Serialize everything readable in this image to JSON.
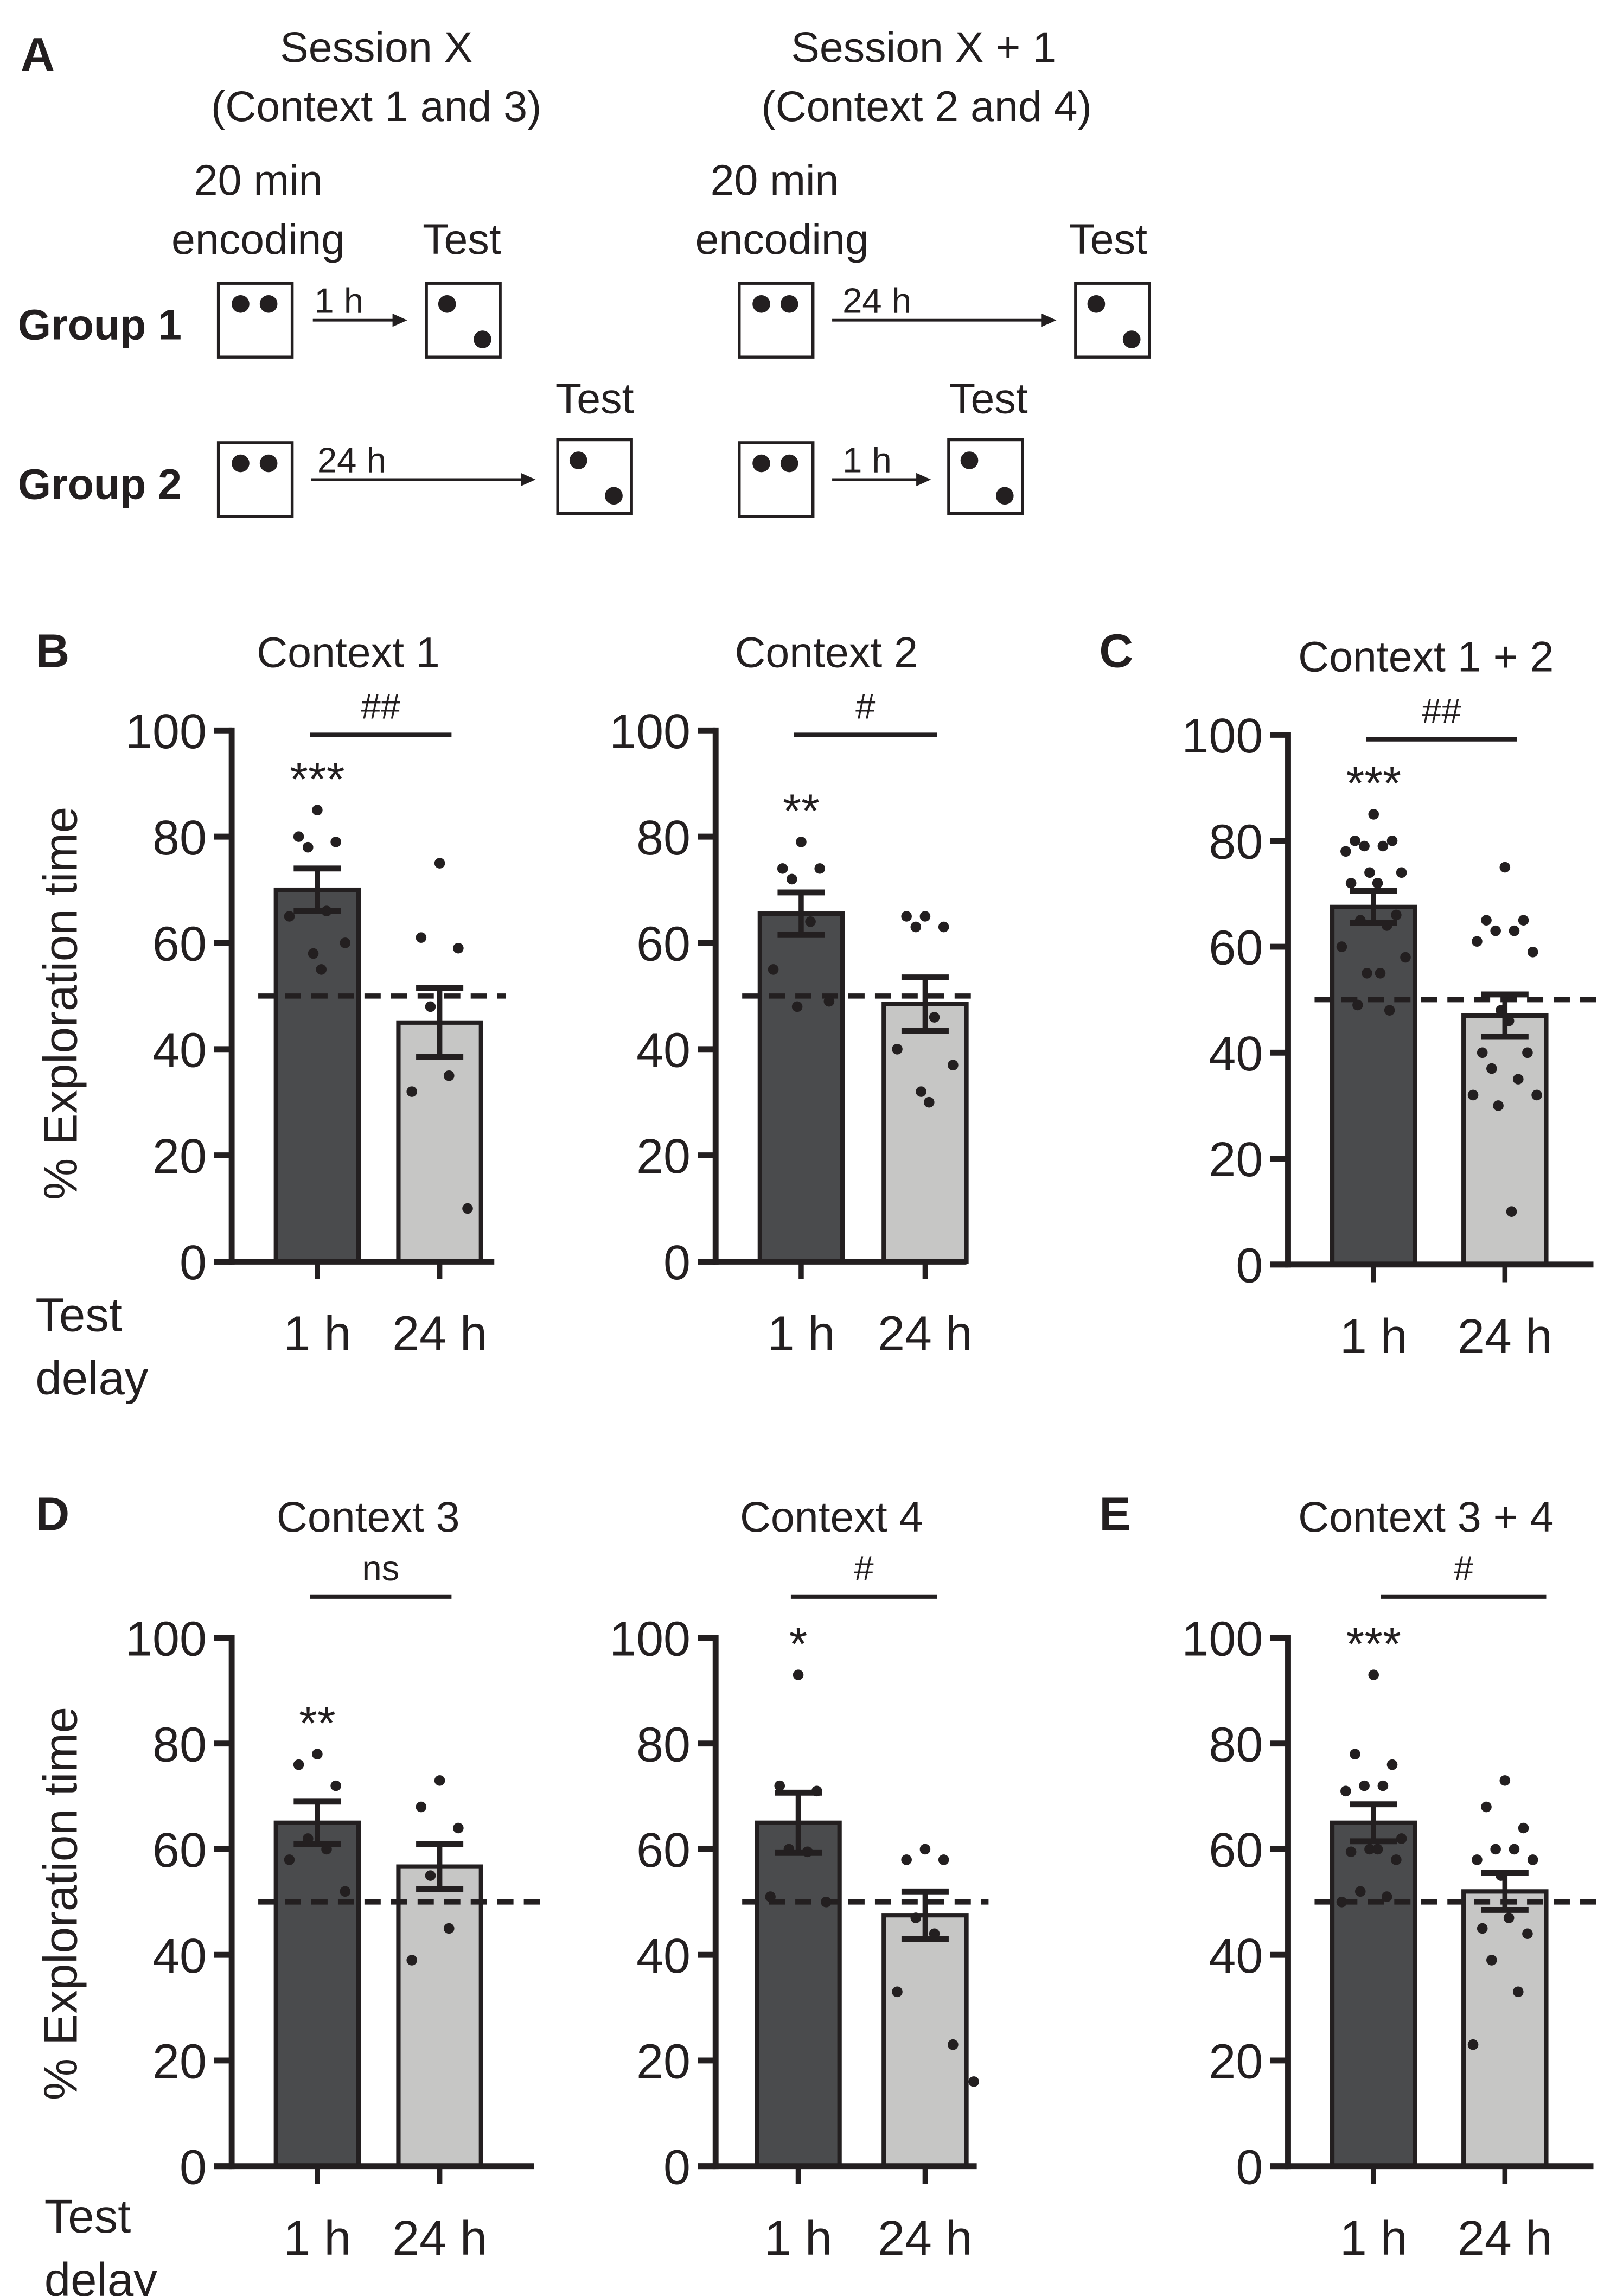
{
  "panel_a": {
    "label": "A",
    "session_x": {
      "title": "Session X",
      "subtitle": "(Context 1 and 3)"
    },
    "session_x1": {
      "title": "Session X + 1",
      "subtitle": "(Context 2 and 4)"
    },
    "encoding_line1": "20 min",
    "encoding_line2": "encoding",
    "test": "Test",
    "group1": "Group 1",
    "group2": "Group 2",
    "delay_1h": "1 h",
    "delay_24h": "24 h"
  },
  "panel_labels": {
    "b": "B",
    "c": "C",
    "d": "D",
    "e": "E"
  },
  "axis": {
    "ylabel": "% Exploration time",
    "xlabel_line1": "Test",
    "xlabel_line2": "delay"
  },
  "chart_data": [
    {
      "type": "bar",
      "title": "Context 1",
      "categories": [
        "1 h",
        "24 h"
      ],
      "values": [
        70,
        45
      ],
      "sem": [
        4,
        6.5
      ],
      "points": [
        [
          85,
          80,
          79,
          78,
          66,
          65,
          60,
          58,
          55
        ],
        [
          75,
          61,
          59,
          48,
          35,
          32,
          10
        ]
      ],
      "stars": [
        "***",
        ""
      ],
      "comparison": "##",
      "ylim": [
        0,
        100
      ],
      "yticks": [
        0,
        20,
        40,
        60,
        80,
        100
      ],
      "chance": 50
    },
    {
      "type": "bar",
      "title": "Context 2",
      "categories": [
        "1 h",
        "24 h"
      ],
      "values": [
        65.5,
        48.5
      ],
      "sem": [
        4,
        5
      ],
      "points": [
        [
          79,
          74,
          74,
          72,
          64,
          55,
          49,
          48
        ],
        [
          65,
          65,
          63,
          63,
          46,
          40,
          37,
          32,
          30
        ]
      ],
      "stars": [
        "**",
        ""
      ],
      "comparison": "#",
      "ylim": [
        0,
        100
      ],
      "yticks": [
        0,
        20,
        40,
        60,
        80,
        100
      ],
      "chance": 50
    },
    {
      "type": "bar",
      "title": "Context 1 + 2",
      "categories": [
        "1 h",
        "24 h"
      ],
      "values": [
        67.5,
        47
      ],
      "sem": [
        3,
        4
      ],
      "points": [
        [
          85,
          80,
          80,
          79,
          79,
          78,
          74,
          74,
          72,
          72,
          66,
          65,
          64,
          60,
          58,
          55,
          55,
          49,
          48
        ],
        [
          75,
          65,
          65,
          63,
          63,
          61,
          59,
          48,
          46,
          40,
          40,
          37,
          35,
          32,
          32,
          30,
          10
        ]
      ],
      "stars": [
        "***",
        ""
      ],
      "comparison": "##",
      "ylim": [
        0,
        100
      ],
      "yticks": [
        0,
        20,
        40,
        60,
        80,
        100
      ],
      "chance": 50
    },
    {
      "type": "bar",
      "title": "Context 3",
      "categories": [
        "1 h",
        "24 h"
      ],
      "values": [
        65,
        56.7
      ],
      "sem": [
        4,
        4.3
      ],
      "points": [
        [
          78,
          76,
          72,
          62,
          60,
          58,
          52
        ],
        [
          73,
          68,
          64,
          55,
          45,
          39
        ]
      ],
      "stars": [
        "**",
        ""
      ],
      "comparison": "ns",
      "ylim": [
        0,
        100
      ],
      "yticks": [
        0,
        20,
        40,
        60,
        80,
        100
      ],
      "chance": 50
    },
    {
      "type": "bar",
      "title": "Context 4",
      "categories": [
        "1 h",
        "24 h"
      ],
      "values": [
        65,
        47.5
      ],
      "sem": [
        5.7,
        4.5
      ],
      "points": [
        [
          93,
          72,
          71,
          60,
          59.5,
          51,
          50
        ],
        [
          60,
          58,
          58,
          47,
          44,
          33,
          23,
          16
        ]
      ],
      "stars": [
        "*",
        ""
      ],
      "comparison": "#",
      "ylim": [
        0,
        100
      ],
      "yticks": [
        0,
        20,
        40,
        60,
        80,
        100
      ],
      "chance": 50
    },
    {
      "type": "bar",
      "title": "Context 3 + 4",
      "categories": [
        "1 h",
        "24 h"
      ],
      "values": [
        65,
        52
      ],
      "sem": [
        3.5,
        3.5
      ],
      "points": [
        [
          93,
          78,
          76,
          72,
          72,
          71,
          62,
          60,
          60,
          59.5,
          58,
          52,
          51,
          50
        ],
        [
          73,
          68,
          64,
          60,
          60,
          58,
          58,
          55,
          47,
          45,
          44,
          39,
          33,
          23
        ]
      ],
      "stars": [
        "***",
        ""
      ],
      "comparison": "#",
      "ylim": [
        0,
        100
      ],
      "yticks": [
        0,
        20,
        40,
        60,
        80,
        100
      ],
      "chance": 50
    }
  ],
  "colors": {
    "bar_1h": "#4a4b4d",
    "bar_24h": "#c6c6c5",
    "ink": "#231f20"
  }
}
